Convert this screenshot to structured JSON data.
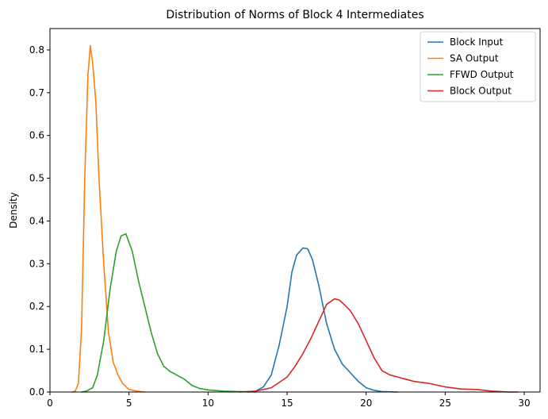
{
  "chart_data": {
    "type": "line",
    "title": "Distribution of Norms of Block 4 Intermediates",
    "xlabel": "",
    "ylabel": "Density",
    "xlim": [
      0,
      31
    ],
    "ylim": [
      0,
      0.85
    ],
    "xticks": [
      0,
      5,
      10,
      15,
      20,
      25,
      30
    ],
    "yticks": [
      0.0,
      0.1,
      0.2,
      0.3,
      0.4,
      0.5,
      0.6,
      0.7,
      0.8
    ],
    "grid": false,
    "legend_position": "top-right",
    "series": [
      {
        "name": "Block Input",
        "color": "#1f77b4",
        "points": [
          [
            12.5,
            0
          ],
          [
            13,
            0.002
          ],
          [
            13.5,
            0.012
          ],
          [
            14,
            0.04
          ],
          [
            14.5,
            0.11
          ],
          [
            15,
            0.2
          ],
          [
            15.3,
            0.28
          ],
          [
            15.6,
            0.32
          ],
          [
            16,
            0.337
          ],
          [
            16.3,
            0.335
          ],
          [
            16.6,
            0.31
          ],
          [
            17,
            0.25
          ],
          [
            17.5,
            0.16
          ],
          [
            18,
            0.1
          ],
          [
            18.5,
            0.065
          ],
          [
            19,
            0.045
          ],
          [
            19.5,
            0.025
          ],
          [
            20,
            0.01
          ],
          [
            20.5,
            0.004
          ],
          [
            21,
            0.001
          ],
          [
            22,
            0
          ]
        ]
      },
      {
        "name": "SA Output",
        "color": "#ff7f0e",
        "points": [
          [
            1.4,
            0
          ],
          [
            1.6,
            0.002
          ],
          [
            1.8,
            0.02
          ],
          [
            2.0,
            0.15
          ],
          [
            2.2,
            0.5
          ],
          [
            2.4,
            0.74
          ],
          [
            2.55,
            0.81
          ],
          [
            2.7,
            0.77
          ],
          [
            2.9,
            0.68
          ],
          [
            3.1,
            0.5
          ],
          [
            3.4,
            0.3
          ],
          [
            3.7,
            0.14
          ],
          [
            4.0,
            0.07
          ],
          [
            4.3,
            0.04
          ],
          [
            4.6,
            0.02
          ],
          [
            5.0,
            0.006
          ],
          [
            5.5,
            0.002
          ],
          [
            6.0,
            0
          ]
        ]
      },
      {
        "name": "FFWD Output",
        "color": "#2ca02c",
        "points": [
          [
            2.0,
            0
          ],
          [
            2.3,
            0.002
          ],
          [
            2.7,
            0.01
          ],
          [
            3.0,
            0.04
          ],
          [
            3.4,
            0.12
          ],
          [
            3.8,
            0.24
          ],
          [
            4.2,
            0.33
          ],
          [
            4.5,
            0.365
          ],
          [
            4.8,
            0.37
          ],
          [
            5.2,
            0.33
          ],
          [
            5.6,
            0.26
          ],
          [
            6.0,
            0.2
          ],
          [
            6.4,
            0.14
          ],
          [
            6.8,
            0.09
          ],
          [
            7.2,
            0.06
          ],
          [
            7.6,
            0.048
          ],
          [
            8.0,
            0.04
          ],
          [
            8.5,
            0.03
          ],
          [
            9.0,
            0.015
          ],
          [
            9.5,
            0.008
          ],
          [
            10.0,
            0.005
          ],
          [
            11.0,
            0.002
          ],
          [
            12.0,
            0.001
          ],
          [
            13.0,
            0
          ]
        ]
      },
      {
        "name": "Block Output",
        "color": "#d62728",
        "points": [
          [
            12,
            0
          ],
          [
            13,
            0.002
          ],
          [
            14,
            0.01
          ],
          [
            15,
            0.035
          ],
          [
            15.5,
            0.06
          ],
          [
            16,
            0.09
          ],
          [
            16.5,
            0.125
          ],
          [
            17,
            0.165
          ],
          [
            17.5,
            0.205
          ],
          [
            18,
            0.218
          ],
          [
            18.3,
            0.215
          ],
          [
            18.6,
            0.205
          ],
          [
            19,
            0.19
          ],
          [
            19.5,
            0.16
          ],
          [
            20,
            0.12
          ],
          [
            20.5,
            0.08
          ],
          [
            21,
            0.05
          ],
          [
            21.5,
            0.04
          ],
          [
            22,
            0.035
          ],
          [
            23,
            0.025
          ],
          [
            24,
            0.02
          ],
          [
            25,
            0.012
          ],
          [
            26,
            0.007
          ],
          [
            27,
            0.006
          ],
          [
            28,
            0.002
          ],
          [
            29,
            0
          ],
          [
            29.6,
            0
          ]
        ]
      }
    ]
  }
}
